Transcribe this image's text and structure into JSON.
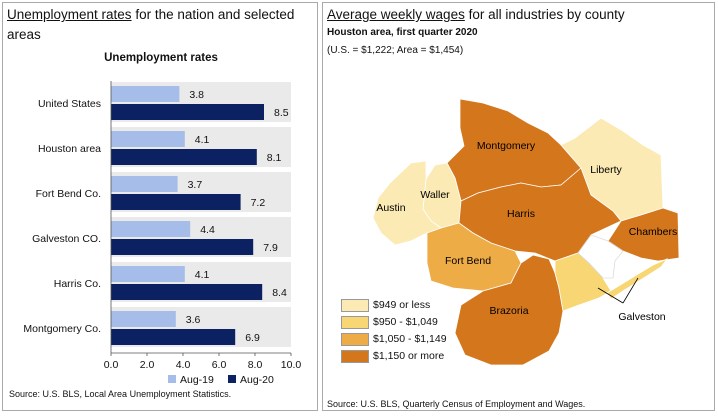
{
  "left": {
    "title_part1": "Unemployment rates",
    "title_part2": " for the nation and selected areas",
    "source": "Source: U.S. BLS, Local Area Unemployment Statistics."
  },
  "chart_data": {
    "type": "bar",
    "orientation": "horizontal",
    "title": "Unemployment rates",
    "categories": [
      "United States",
      "Houston area",
      "Fort Bend Co.",
      "Galveston CO.",
      "Harris Co.",
      "Montgomery Co."
    ],
    "series": [
      {
        "name": "Aug-19",
        "color": "#a5bde8",
        "values": [
          3.8,
          4.1,
          3.7,
          4.4,
          4.1,
          3.6
        ]
      },
      {
        "name": "Aug-20",
        "color": "#0c2161",
        "values": [
          8.5,
          8.1,
          7.2,
          7.9,
          8.4,
          6.9
        ]
      }
    ],
    "xlim": [
      0,
      10
    ],
    "xticks": [
      "0.0",
      "2.0",
      "4.0",
      "6.0",
      "8.0",
      "10.0"
    ],
    "grid": false,
    "row_band_color": "#eaeaea",
    "legend_position": "bottom"
  },
  "right": {
    "title_part1": "Average weekly wages",
    "title_part2": " for all industries by county",
    "subtitle": "Houston area, first quarter 2020",
    "note": "(U.S. = $1,222; Area = $1,454)",
    "source": "Source: U.S. BLS, Quarterly Census of Employment and Wages.",
    "legend": [
      {
        "label": "$949 or less",
        "color": "#fbeab3"
      },
      {
        "label": "$950 - $1,049",
        "color": "#f8d673"
      },
      {
        "label": "$1,050 - $1,149",
        "color": "#eeac47"
      },
      {
        "label": "$1,150 or more",
        "color": "#d4761c"
      }
    ],
    "counties": [
      {
        "name": "Montgomery",
        "color": "#d4761c"
      },
      {
        "name": "Liberty",
        "color": "#fbeab3"
      },
      {
        "name": "Waller",
        "color": "#fbeab3"
      },
      {
        "name": "Austin",
        "color": "#fbeab3"
      },
      {
        "name": "Harris",
        "color": "#d4761c"
      },
      {
        "name": "Chambers",
        "color": "#d4761c"
      },
      {
        "name": "Fort Bend",
        "color": "#eeac47"
      },
      {
        "name": "Brazoria",
        "color": "#d4761c"
      },
      {
        "name": "Galveston",
        "color": "#f8d673"
      }
    ],
    "water_color": "#ffffff"
  }
}
